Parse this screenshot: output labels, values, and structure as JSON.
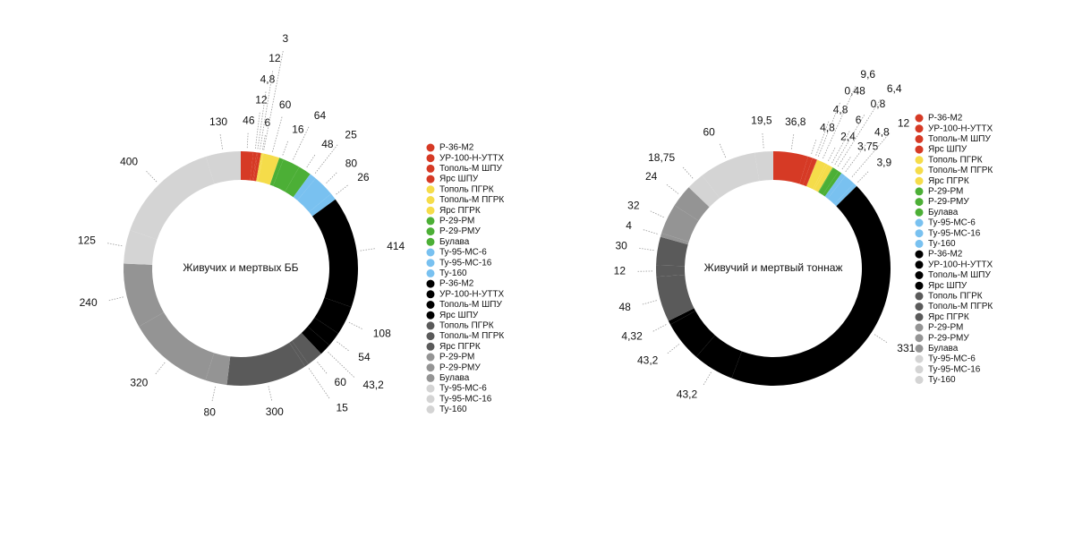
{
  "chart_data": [
    {
      "type": "pie",
      "title": "Живучих и мертвых ББ",
      "labels": [
        "Р-36-М2",
        "УР-100-Н-УТТХ",
        "Тополь-М ШПУ",
        "Ярс ШПУ",
        "Тополь ПГРК",
        "Тополь-М ПГРК",
        "Ярс ПГРК",
        "Р-29-РМ",
        "Р-29-РМУ",
        "Булава",
        "Ту-95-МС-6",
        "Ту-95-МС-16",
        "Ту-160",
        "Р-36-М2",
        "УР-100-Н-УТТХ",
        "Тополь-М ШПУ",
        "Ярс ШПУ",
        "Тополь ПГРК",
        "Тополь-М ПГРК",
        "Ярс ПГРК",
        "Р-29-РМ",
        "Р-29-РМУ",
        "Булава",
        "Ту-95-МС-6",
        "Ту-95-МС-16",
        "Ту-160"
      ],
      "values": [
        46,
        12,
        4.8,
        12,
        6,
        3,
        60,
        16,
        64,
        48,
        25,
        80,
        26,
        414,
        108,
        54,
        43.2,
        60,
        15,
        300,
        80,
        320,
        240,
        125,
        400,
        130
      ],
      "value_labels": [
        "46",
        "12",
        "4,8",
        "12",
        "6",
        "3",
        "60",
        "16",
        "64",
        "48",
        "25",
        "80",
        "26",
        "414",
        "108",
        "54",
        "43,2",
        "60",
        "15",
        "300",
        "80",
        "320",
        "240",
        "125",
        "400",
        "130"
      ],
      "colors": [
        "#d63a25",
        "#d63a25",
        "#d63a25",
        "#d63a25",
        "#f5dc4a",
        "#f5dc4a",
        "#f5dc4a",
        "#4caf36",
        "#4caf36",
        "#4caf36",
        "#79c1f0",
        "#79c1f0",
        "#79c1f0",
        "#000000",
        "#000000",
        "#000000",
        "#000000",
        "#5a5a5a",
        "#5a5a5a",
        "#5a5a5a",
        "#949494",
        "#949494",
        "#949494",
        "#d4d4d4",
        "#d4d4d4",
        "#d4d4d4"
      ]
    },
    {
      "type": "pie",
      "title": "Живучий и мертвый тоннаж",
      "labels": [
        "Р-36-М2",
        "УР-100-Н-УТТХ",
        "Тополь-М ШПУ",
        "Ярс ШПУ",
        "Тополь ПГРК",
        "Тополь-М ПГРК",
        "Ярс ПГРК",
        "Р-29-РМ",
        "Р-29-РМУ",
        "Булава",
        "Ту-95-МС-6",
        "Ту-95-МС-16",
        "Ту-160",
        "Р-36-М2",
        "УР-100-Н-УТТХ",
        "Тополь-М ШПУ",
        "Ярс ШПУ",
        "Тополь ПГРК",
        "Тополь-М ПГРК",
        "Ярс ПГРК",
        "Р-29-РМ",
        "Р-29-РМУ",
        "Булава",
        "Ту-95-МС-6",
        "Ту-95-МС-16",
        "Ту-160"
      ],
      "values": [
        36.8,
        4.8,
        4.8,
        0.48,
        9.6,
        2.4,
        6,
        0.8,
        6.4,
        3.75,
        4.8,
        12,
        3.9,
        331,
        43.2,
        43.2,
        4.32,
        48,
        12,
        30,
        4,
        32,
        24,
        18.75,
        60,
        19.5
      ],
      "value_labels": [
        "36,8",
        "4,8",
        "4,8",
        "0,48",
        "9,6",
        "2,4",
        "6",
        "0,8",
        "6,4",
        "3,75",
        "4,8",
        "12",
        "3,9",
        "331",
        "43,2",
        "43,2",
        "4,32",
        "48",
        "12",
        "30",
        "4",
        "32",
        "24",
        "18,75",
        "60",
        "19,5"
      ],
      "colors": [
        "#d63a25",
        "#d63a25",
        "#d63a25",
        "#d63a25",
        "#f5dc4a",
        "#f5dc4a",
        "#f5dc4a",
        "#4caf36",
        "#4caf36",
        "#4caf36",
        "#79c1f0",
        "#79c1f0",
        "#79c1f0",
        "#000000",
        "#000000",
        "#000000",
        "#000000",
        "#5a5a5a",
        "#5a5a5a",
        "#5a5a5a",
        "#949494",
        "#949494",
        "#949494",
        "#d4d4d4",
        "#d4d4d4",
        "#d4d4d4"
      ]
    }
  ]
}
